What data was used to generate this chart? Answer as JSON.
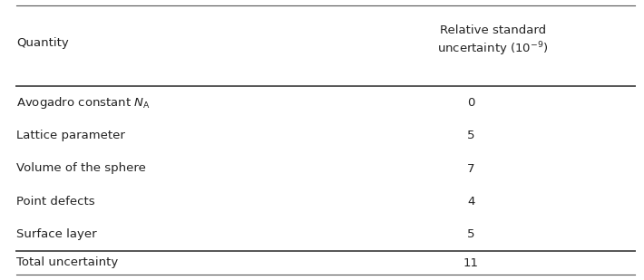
{
  "col1_header": "Quantity",
  "col2_header": "Relative standard\nuncertainty (10$^{-9}$)",
  "rows": [
    [
      "Avogadro constant $N_{\\mathrm{A}}$",
      "0"
    ],
    [
      "Lattice parameter",
      "5"
    ],
    [
      "Volume of the sphere",
      "7"
    ],
    [
      "Point defects",
      "4"
    ],
    [
      "Surface layer",
      "5"
    ]
  ],
  "total_row": [
    "Total uncertainty",
    "11"
  ],
  "bg_color": "#ffffff",
  "text_color": "#222222",
  "line_color": "#555555",
  "header_fontsize": 9.5,
  "body_fontsize": 9.5,
  "fig_width": 7.1,
  "fig_height": 3.09,
  "dpi": 100
}
